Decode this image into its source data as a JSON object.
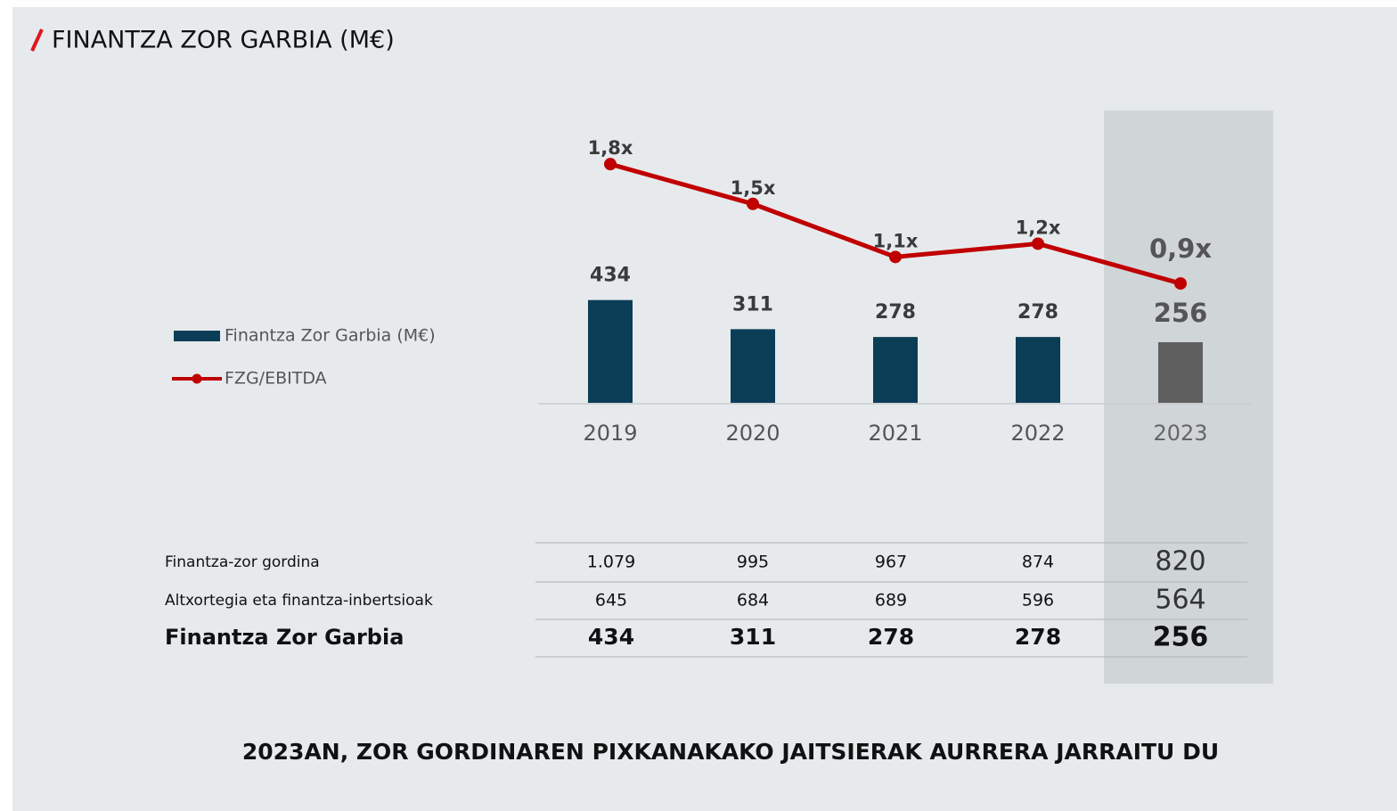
{
  "chart_data": {
    "type": "bar",
    "title": "FINANTZA ZOR GARBIA (M€)",
    "categories": [
      "2019",
      "2020",
      "2021",
      "2022",
      "2023"
    ],
    "highlight": "2023",
    "series": [
      {
        "name": "Finantza Zor Garbia (M€)",
        "type": "bar",
        "colors": [
          "#0b3d56",
          "#0b3d56",
          "#0b3d56",
          "#0b3d56",
          "#5f5f5f"
        ],
        "values": [
          434,
          311,
          278,
          278,
          256
        ]
      },
      {
        "name": "FZG/EBITDA",
        "type": "line",
        "axis": "y2",
        "color": "#c00000",
        "values": [
          1.8,
          1.5,
          1.1,
          1.2,
          0.9
        ],
        "value_labels": [
          "1,8x",
          "1,5x",
          "1,1x",
          "1,2x",
          "0,9x"
        ]
      }
    ],
    "ylim": [
      0,
      1400
    ],
    "y2lim": [
      0,
      2.5
    ],
    "grid": false
  },
  "table": {
    "rows": [
      [
        "Finantza-zor gordina",
        "1.079",
        "995",
        "967",
        "874",
        "820"
      ],
      [
        "Altxortegia eta finantza-inbertsioak",
        "645",
        "684",
        "689",
        "596",
        "564"
      ],
      [
        "Finantza Zor Garbia",
        "434",
        "311",
        "278",
        "278",
        "256"
      ]
    ]
  },
  "footer": "2023AN, ZOR GORDINAREN PIXKANAKAKO JAITSIERAK AURRERA JARRAITU DU"
}
